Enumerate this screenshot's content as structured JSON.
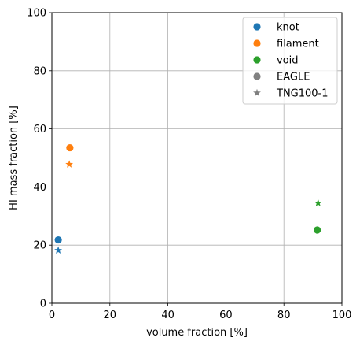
{
  "chart_data": {
    "type": "scatter",
    "title": "",
    "xlabel": "volume fraction [%]",
    "ylabel": "HI mass fraction [%]",
    "xlim": [
      0,
      100
    ],
    "ylim": [
      0,
      100
    ],
    "xticks": [
      0,
      20,
      40,
      60,
      80,
      100
    ],
    "yticks": [
      0,
      20,
      40,
      60,
      80,
      100
    ],
    "grid": true,
    "legend_position": "top-right",
    "legend": [
      {
        "label": "knot",
        "marker": "circle",
        "color": "#1f77b4"
      },
      {
        "label": "filament",
        "marker": "circle",
        "color": "#ff7f0e"
      },
      {
        "label": "void",
        "marker": "circle",
        "color": "#2ca02c"
      },
      {
        "label": "EAGLE",
        "marker": "circle",
        "color": "#808080"
      },
      {
        "label": "TNG100-1",
        "marker": "star",
        "color": "#808080"
      }
    ],
    "points": [
      {
        "environment": "knot",
        "simulation": "EAGLE",
        "marker": "circle",
        "color": "#1f77b4",
        "x": 2.2,
        "y": 21.8
      },
      {
        "environment": "knot",
        "simulation": "TNG100-1",
        "marker": "star",
        "color": "#1f77b4",
        "x": 2.2,
        "y": 18.2
      },
      {
        "environment": "filament",
        "simulation": "EAGLE",
        "marker": "circle",
        "color": "#ff7f0e",
        "x": 6.2,
        "y": 53.5
      },
      {
        "environment": "filament",
        "simulation": "TNG100-1",
        "marker": "star",
        "color": "#ff7f0e",
        "x": 6.0,
        "y": 47.8
      },
      {
        "environment": "void",
        "simulation": "EAGLE",
        "marker": "circle",
        "color": "#2ca02c",
        "x": 91.5,
        "y": 25.2
      },
      {
        "environment": "void",
        "simulation": "TNG100-1",
        "marker": "star",
        "color": "#2ca02c",
        "x": 91.8,
        "y": 34.5
      }
    ]
  }
}
